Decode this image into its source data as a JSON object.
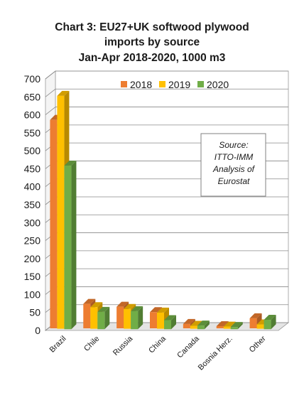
{
  "chart_data": {
    "type": "bar",
    "title_lines": [
      "Chart 3: EU27+UK softwood plywood",
      "imports by source",
      "Jan-Apr 2018-2020, 1000 m3"
    ],
    "categories": [
      "Brazil",
      "Chile",
      "Russia",
      "China",
      "Canada",
      "Bosnia Herz.",
      "Other"
    ],
    "series": [
      {
        "name": "2018",
        "color": "#ED7D31",
        "values": [
          580,
          68,
          60,
          45,
          12,
          6,
          28
        ]
      },
      {
        "name": "2019",
        "color": "#FFC000",
        "values": [
          648,
          60,
          55,
          45,
          8,
          6,
          12
        ]
      },
      {
        "name": "2020",
        "color": "#70AD47",
        "values": [
          455,
          48,
          50,
          25,
          10,
          6,
          26
        ]
      }
    ],
    "ylim": [
      0,
      700
    ],
    "yticks": [
      0,
      50,
      100,
      150,
      200,
      250,
      300,
      350,
      400,
      450,
      500,
      550,
      600,
      650,
      700
    ],
    "grid": true,
    "legend_position": "top-right",
    "annotation_lines": [
      "Source:",
      "ITTO-IMM",
      "Analysis of",
      "Eurostat"
    ]
  }
}
